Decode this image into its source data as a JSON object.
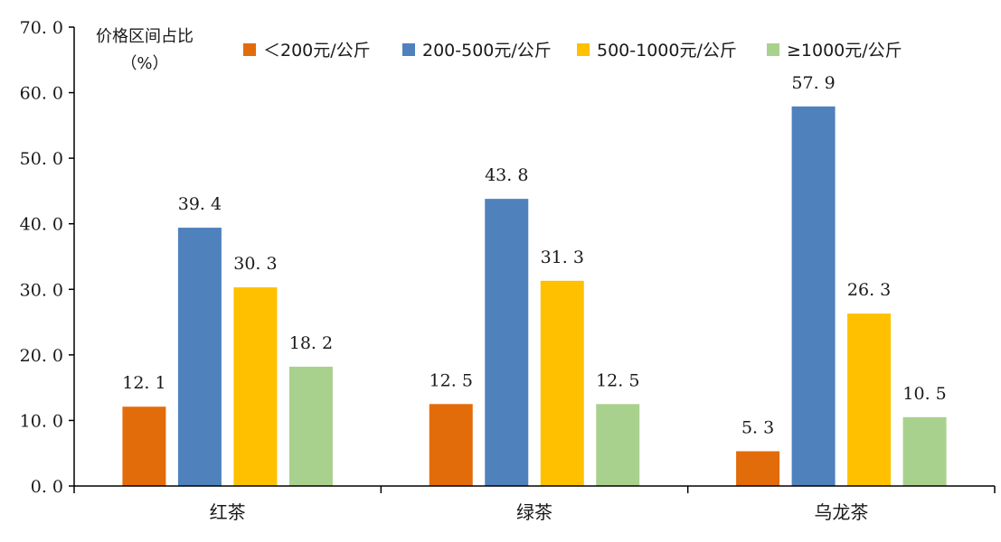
{
  "chart_data": {
    "type": "bar",
    "ylabel_line1": "价格区间占比",
    "ylabel_line2": "（%）",
    "categories": [
      "红茶",
      "绿茶",
      "乌龙茶"
    ],
    "ylim": [
      0,
      70
    ],
    "yticks": [
      "0. 0",
      "10. 0",
      "20. 0",
      "30. 0",
      "40. 0",
      "50. 0",
      "60. 0",
      "70. 0"
    ],
    "legend_position": "top",
    "series": [
      {
        "name": "＜200元/公斤",
        "color": "#E36C0A",
        "values": [
          12.1,
          12.5,
          5.3
        ],
        "labels": [
          "12. 1",
          "12. 5",
          "5. 3"
        ]
      },
      {
        "name": "200-500元/公斤",
        "color": "#4F81BD",
        "values": [
          39.4,
          43.8,
          57.9
        ],
        "labels": [
          "39. 4",
          "43. 8",
          "57. 9"
        ]
      },
      {
        "name": "500-1000元/公斤",
        "color": "#FFC000",
        "values": [
          30.3,
          31.3,
          26.3
        ],
        "labels": [
          "30. 3",
          "31. 3",
          "26. 3"
        ]
      },
      {
        "name": "≥1000元/公斤",
        "color": "#A9D18E",
        "values": [
          18.2,
          12.5,
          10.5
        ],
        "labels": [
          "18. 2",
          "12. 5",
          "10. 5"
        ]
      }
    ]
  }
}
